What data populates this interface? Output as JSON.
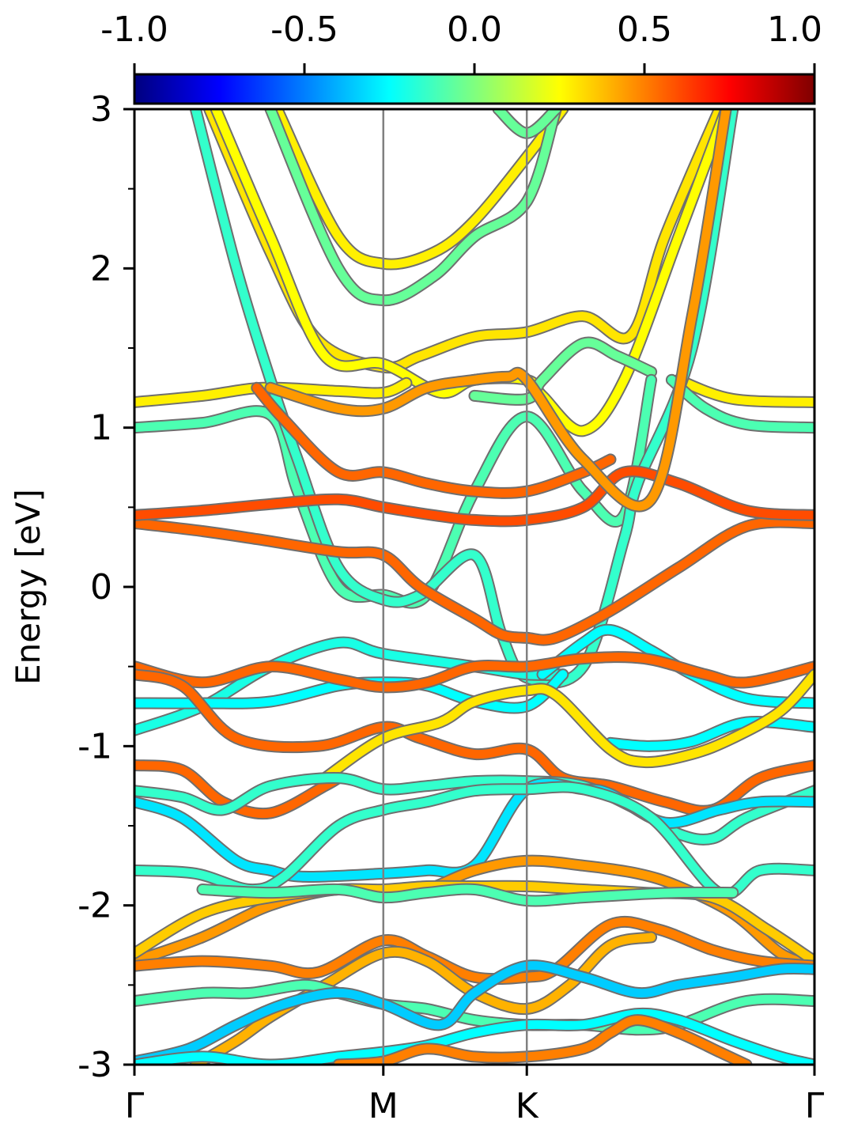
{
  "chart_data": {
    "type": "line",
    "subtype": "band-structure",
    "title": "",
    "xlabel": "",
    "ylabel": "Energy [eV]",
    "ylim": [
      -3,
      3
    ],
    "yticks": [
      "3",
      "2",
      "1",
      "0",
      "-1",
      "-2",
      "-3"
    ],
    "kpoints": [
      {
        "label": "Γ",
        "position": 0.0
      },
      {
        "label": "M",
        "position": 0.366
      },
      {
        "label": "K",
        "position": 0.577
      },
      {
        "label": "Γ",
        "position": 1.0
      }
    ],
    "xlim": [
      0,
      1
    ],
    "colorbar": {
      "colormap": "jet",
      "range": [
        -1.0,
        1.0
      ],
      "ticks": [
        "-1.0",
        "-0.5",
        "0.0",
        "0.5",
        "1.0"
      ],
      "colors": [
        "#00007f",
        "#0000ff",
        "#007fff",
        "#00ffff",
        "#7fff7f",
        "#ffff00",
        "#ff7f00",
        "#ff0000",
        "#7f0000"
      ]
    },
    "grid": false,
    "series": [
      {
        "projection": 0.3,
        "x": [
          0.11,
          0.2,
          0.27,
          0.366,
          0.42,
          0.5,
          0.577,
          0.66,
          0.73,
          0.78,
          0.86
        ],
        "y": [
          3.0,
          2.1,
          1.55,
          1.38,
          1.45,
          1.57,
          1.6,
          1.7,
          1.58,
          2.2,
          3.0
        ]
      },
      {
        "projection": 0.25,
        "x": [
          0.12,
          0.2,
          0.28,
          0.366,
          0.45,
          0.5,
          0.577,
          0.6,
          0.66,
          0.72,
          0.8,
          0.87
        ],
        "y": [
          3.0,
          2.2,
          1.45,
          1.4,
          1.22,
          1.3,
          1.3,
          1.2,
          0.98,
          1.3,
          2.2,
          3.0
        ]
      },
      {
        "projection": 0.28,
        "x": [
          0.21,
          0.3,
          0.366,
          0.44,
          0.5,
          0.577,
          0.63
        ],
        "y": [
          3.0,
          2.2,
          2.03,
          2.1,
          2.3,
          2.7,
          3.0
        ]
      },
      {
        "projection": -0.05,
        "x": [
          0.2,
          0.3,
          0.366,
          0.44,
          0.5,
          0.577,
          0.62
        ],
        "y": [
          3.0,
          2.0,
          1.8,
          1.95,
          2.2,
          2.42,
          3.0
        ]
      },
      {
        "projection": -0.05,
        "x": [
          0.535,
          0.577,
          0.62
        ],
        "y": [
          3.0,
          2.85,
          3.0
        ]
      },
      {
        "projection": -0.05,
        "x": [
          0.5,
          0.577,
          0.6,
          0.66,
          0.71,
          0.76
        ],
        "y": [
          1.2,
          1.18,
          1.3,
          1.53,
          1.45,
          1.35
        ]
      },
      {
        "projection": 0.28,
        "x": [
          0.0,
          0.1,
          0.19,
          0.3,
          0.366,
          0.4
        ],
        "y": [
          1.16,
          1.2,
          1.25,
          1.23,
          1.22,
          1.28
        ]
      },
      {
        "projection": 0.28,
        "x": [
          0.8,
          0.88,
          1.0
        ],
        "y": [
          1.3,
          1.18,
          1.16
        ]
      },
      {
        "projection": -0.1,
        "x": [
          0.0,
          0.1,
          0.2,
          0.24,
          0.3,
          0.366,
          0.43,
          0.5,
          0.577,
          0.66,
          0.72,
          0.76
        ],
        "y": [
          1.0,
          1.03,
          1.08,
          0.6,
          0.0,
          -0.05,
          -0.05,
          0.6,
          1.07,
          0.6,
          0.45,
          1.3
        ]
      },
      {
        "projection": -0.1,
        "x": [
          0.79,
          0.84,
          0.9,
          1.0
        ],
        "y": [
          1.3,
          1.12,
          1.02,
          1.0
        ]
      },
      {
        "projection": -0.15,
        "x": [
          0.09,
          0.15,
          0.2,
          0.24,
          0.3,
          0.366,
          0.42,
          0.5,
          0.54,
          0.577,
          0.66,
          0.72,
          0.74,
          0.82,
          0.88
        ],
        "y": [
          3.0,
          2.0,
          1.3,
          0.8,
          0.12,
          -0.08,
          -0.05,
          0.2,
          -0.3,
          -0.57,
          -0.5,
          0.3,
          0.65,
          1.5,
          3.0
        ]
      },
      {
        "projection": 0.55,
        "x": [
          0.0,
          0.1,
          0.18,
          0.3,
          0.366,
          0.42,
          0.5,
          0.54,
          0.577,
          0.62,
          0.7,
          0.8,
          0.9,
          1.0
        ],
        "y": [
          0.4,
          0.35,
          0.3,
          0.22,
          0.2,
          0.0,
          -0.2,
          -0.3,
          -0.32,
          -0.32,
          -0.15,
          0.12,
          0.38,
          0.4
        ]
      },
      {
        "projection": 0.6,
        "x": [
          0.0,
          0.1,
          0.2,
          0.3,
          0.366,
          0.44,
          0.5,
          0.577,
          0.66,
          0.72,
          0.8,
          0.9,
          1.0
        ],
        "y": [
          0.45,
          0.48,
          0.52,
          0.55,
          0.5,
          0.45,
          0.42,
          0.42,
          0.5,
          0.72,
          0.65,
          0.48,
          0.45
        ]
      },
      {
        "projection": 0.55,
        "x": [
          0.18,
          0.22,
          0.3,
          0.366,
          0.43,
          0.5,
          0.577,
          0.66,
          0.7
        ],
        "y": [
          1.25,
          1.05,
          0.72,
          0.72,
          0.65,
          0.6,
          0.6,
          0.72,
          0.8
        ]
      },
      {
        "projection": 0.45,
        "x": [
          0.2,
          0.3,
          0.366,
          0.43,
          0.5,
          0.55,
          0.577,
          0.66,
          0.76,
          0.82,
          0.87
        ],
        "y": [
          1.25,
          1.12,
          1.12,
          1.25,
          1.3,
          1.32,
          1.3,
          0.8,
          0.55,
          1.7,
          3.0
        ]
      },
      {
        "projection": -0.2,
        "x": [
          0.0,
          0.1,
          0.2,
          0.3,
          0.366,
          0.5,
          0.577,
          0.63
        ],
        "y": [
          -0.9,
          -0.75,
          -0.5,
          -0.35,
          -0.42,
          -0.5,
          -0.55,
          -0.55
        ]
      },
      {
        "projection": -0.25,
        "x": [
          0.6,
          0.66,
          0.7,
          0.76,
          0.82,
          0.9,
          1.0
        ],
        "y": [
          -0.55,
          -0.35,
          -0.27,
          -0.4,
          -0.55,
          -0.7,
          -0.73
        ]
      },
      {
        "projection": -0.25,
        "x": [
          0.0,
          0.1,
          0.2,
          0.3,
          0.366,
          0.43,
          0.5,
          0.577,
          0.63
        ],
        "y": [
          -0.73,
          -0.73,
          -0.72,
          -0.62,
          -0.6,
          -0.62,
          -0.72,
          -0.75,
          -0.55
        ]
      },
      {
        "projection": -0.25,
        "x": [
          0.7,
          0.76,
          0.82,
          0.9,
          1.0
        ],
        "y": [
          -0.98,
          -1.0,
          -0.97,
          -0.85,
          -0.88
        ]
      },
      {
        "projection": 0.55,
        "x": [
          0.0,
          0.1,
          0.2,
          0.3,
          0.366,
          0.43,
          0.5,
          0.577,
          0.66,
          0.75,
          0.84,
          0.9,
          1.0
        ],
        "y": [
          -0.5,
          -0.6,
          -0.5,
          -0.58,
          -0.63,
          -0.6,
          -0.5,
          -0.5,
          -0.45,
          -0.45,
          -0.55,
          -0.6,
          -0.5
        ]
      },
      {
        "projection": 0.55,
        "x": [
          0.0,
          0.07,
          0.15,
          0.27,
          0.366,
          0.42,
          0.5,
          0.577,
          0.63,
          0.7,
          0.78,
          0.85,
          0.92,
          1.0
        ],
        "y": [
          -0.55,
          -0.62,
          -0.95,
          -1.0,
          -0.88,
          -0.95,
          -1.05,
          -1.02,
          -1.2,
          -1.25,
          -1.35,
          -1.4,
          -1.2,
          -1.12
        ]
      },
      {
        "projection": 0.3,
        "x": [
          0.28,
          0.366,
          0.45,
          0.5,
          0.577,
          0.62,
          0.7,
          0.75,
          0.82,
          0.88,
          0.95,
          1.0
        ],
        "y": [
          -1.2,
          -0.95,
          -0.85,
          -0.72,
          -0.65,
          -0.68,
          -1.02,
          -1.1,
          -1.05,
          -0.95,
          -0.78,
          -0.55
        ]
      },
      {
        "projection": 0.55,
        "x": [
          0.0,
          0.07,
          0.13,
          0.2,
          0.28,
          0.3
        ],
        "y": [
          -1.12,
          -1.15,
          -1.35,
          -1.42,
          -1.25,
          -1.2
        ]
      },
      {
        "projection": -0.15,
        "x": [
          0.0,
          0.07,
          0.13,
          0.2,
          0.3,
          0.366,
          0.43,
          0.5,
          0.577,
          0.66,
          0.74,
          0.8,
          0.85,
          0.9,
          1.0
        ],
        "y": [
          -1.28,
          -1.32,
          -1.4,
          -1.25,
          -1.2,
          -1.27,
          -1.25,
          -1.22,
          -1.22,
          -1.25,
          -1.4,
          -1.55,
          -1.58,
          -1.45,
          -1.28
        ]
      },
      {
        "projection": -0.3,
        "x": [
          0.0,
          0.07,
          0.15,
          0.2,
          0.25,
          0.366,
          0.43,
          0.5,
          0.577,
          0.66,
          0.7,
          0.78,
          0.86,
          0.92,
          1.0
        ],
        "y": [
          -1.35,
          -1.45,
          -1.72,
          -1.78,
          -1.82,
          -1.8,
          -1.78,
          -1.75,
          -1.27,
          -1.27,
          -1.3,
          -1.48,
          -1.4,
          -1.35,
          -1.35
        ]
      },
      {
        "projection": -0.15,
        "x": [
          0.0,
          0.09,
          0.17,
          0.22,
          0.3,
          0.366,
          0.43,
          0.5,
          0.577,
          0.66,
          0.76,
          0.86,
          0.92,
          1.0
        ],
        "y": [
          -1.78,
          -1.8,
          -1.9,
          -1.82,
          -1.5,
          -1.4,
          -1.35,
          -1.28,
          -1.27,
          -1.27,
          -1.45,
          -1.92,
          -1.78,
          -1.78
        ]
      },
      {
        "projection": 0.45,
        "x": [
          0.0,
          0.1,
          0.2,
          0.3,
          0.366,
          0.43,
          0.5,
          0.577,
          0.66,
          0.74,
          0.8,
          0.88,
          0.95,
          1.0
        ],
        "y": [
          -2.35,
          -2.2,
          -2.0,
          -1.9,
          -1.95,
          -1.9,
          -1.78,
          -1.72,
          -1.75,
          -1.8,
          -1.88,
          -2.05,
          -2.3,
          -2.38
        ]
      },
      {
        "projection": 0.35,
        "x": [
          0.0,
          0.1,
          0.2,
          0.3,
          0.366,
          0.43,
          0.5,
          0.577,
          0.66,
          0.75,
          0.85,
          0.93,
          1.0
        ],
        "y": [
          -2.3,
          -2.05,
          -1.95,
          -1.9,
          -1.9,
          -1.88,
          -1.88,
          -1.88,
          -1.9,
          -1.92,
          -1.95,
          -2.15,
          -2.35
        ]
      },
      {
        "projection": -0.1,
        "x": [
          0.1,
          0.2,
          0.3,
          0.366,
          0.43,
          0.5,
          0.577,
          0.66,
          0.74,
          0.8,
          0.88
        ],
        "y": [
          -1.9,
          -1.92,
          -1.9,
          -1.95,
          -1.92,
          -1.9,
          -1.97,
          -1.95,
          -1.93,
          -1.92,
          -1.92
        ]
      },
      {
        "projection": 0.5,
        "x": [
          0.0,
          0.1,
          0.2,
          0.27,
          0.366,
          0.43,
          0.5,
          0.577,
          0.62,
          0.7,
          0.77,
          0.85,
          0.92,
          1.0
        ],
        "y": [
          -2.38,
          -2.35,
          -2.38,
          -2.42,
          -2.22,
          -2.32,
          -2.45,
          -2.45,
          -2.4,
          -2.12,
          -2.15,
          -2.28,
          -2.35,
          -2.38
        ]
      },
      {
        "projection": 0.4,
        "x": [
          0.09,
          0.15,
          0.2,
          0.28,
          0.366,
          0.43,
          0.5,
          0.577,
          0.64,
          0.7,
          0.76
        ],
        "y": [
          -3.0,
          -2.85,
          -2.7,
          -2.5,
          -2.3,
          -2.35,
          -2.55,
          -2.65,
          -2.5,
          -2.25,
          -2.2
        ]
      },
      {
        "projection": -0.1,
        "x": [
          0.0,
          0.1,
          0.17,
          0.25,
          0.3,
          0.366,
          0.43,
          0.5,
          0.577,
          0.66,
          0.74,
          0.8,
          0.9,
          1.0
        ],
        "y": [
          -2.6,
          -2.55,
          -2.55,
          -2.5,
          -2.55,
          -2.62,
          -2.65,
          -2.72,
          -2.75,
          -2.75,
          -2.78,
          -2.75,
          -2.6,
          -2.6
        ]
      },
      {
        "projection": -0.35,
        "x": [
          0.0,
          0.08,
          0.15,
          0.22,
          0.3,
          0.366,
          0.45,
          0.5,
          0.577,
          0.66,
          0.74,
          0.8,
          0.88,
          0.95,
          1.0
        ],
        "y": [
          -2.98,
          -2.9,
          -2.75,
          -2.62,
          -2.55,
          -2.62,
          -2.75,
          -2.55,
          -2.38,
          -2.45,
          -2.55,
          -2.5,
          -2.45,
          -2.4,
          -2.4
        ]
      },
      {
        "projection": -0.25,
        "x": [
          0.0,
          0.1,
          0.2,
          0.3,
          0.366,
          0.43,
          0.5,
          0.577,
          0.66,
          0.74,
          0.8,
          0.88,
          0.95,
          1.0
        ],
        "y": [
          -3.0,
          -2.95,
          -3.0,
          -2.95,
          -2.92,
          -2.88,
          -2.8,
          -2.75,
          -2.75,
          -2.68,
          -2.72,
          -2.85,
          -2.95,
          -3.0
        ]
      },
      {
        "projection": 0.5,
        "x": [
          0.3,
          0.366,
          0.43,
          0.5,
          0.577,
          0.66,
          0.7,
          0.74,
          0.8,
          0.86,
          0.9
        ],
        "y": [
          -3.0,
          -2.98,
          -2.9,
          -2.95,
          -2.95,
          -2.9,
          -2.8,
          -2.72,
          -2.8,
          -2.92,
          -3.0
        ]
      }
    ]
  }
}
